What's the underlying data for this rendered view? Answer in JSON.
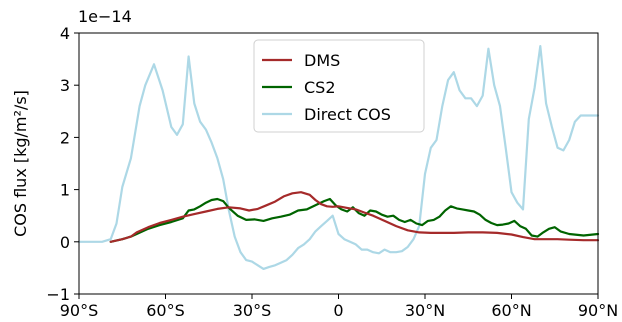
{
  "chart_data": {
    "type": "line",
    "title": "",
    "xlabel": "",
    "ylabel": "COS flux [kg/m²/s]",
    "y_offset_text": "1e−14",
    "xlim": [
      -90,
      90
    ],
    "ylim": [
      -1,
      4
    ],
    "x_ticks": [
      -90,
      -60,
      -30,
      0,
      30,
      60,
      90
    ],
    "x_tick_labels": [
      "90°S",
      "60°S",
      "30°S",
      "0",
      "30°N",
      "60°N",
      "90°N"
    ],
    "y_ticks": [
      -1,
      0,
      1,
      2,
      3,
      4
    ],
    "y_tick_labels": [
      "−1",
      "0",
      "1",
      "2",
      "3",
      "4"
    ],
    "grid": false,
    "legend_position": "top-center",
    "series": [
      {
        "name": "DMS",
        "color": "#a52a2a",
        "x": [
          -79,
          -75,
          -72,
          -70,
          -66,
          -62,
          -58,
          -54,
          -50,
          -46,
          -42,
          -38,
          -34,
          -31,
          -28,
          -25,
          -22,
          -19,
          -16,
          -13,
          -10,
          -8,
          -6,
          -4,
          -2,
          0,
          3,
          6,
          9,
          12,
          16,
          20,
          24,
          28,
          32,
          36,
          40,
          45,
          50,
          55,
          60,
          64,
          68,
          72,
          76,
          80,
          85,
          90
        ],
        "y": [
          0.0,
          0.05,
          0.1,
          0.18,
          0.28,
          0.36,
          0.42,
          0.48,
          0.53,
          0.58,
          0.63,
          0.66,
          0.64,
          0.6,
          0.63,
          0.7,
          0.77,
          0.87,
          0.93,
          0.95,
          0.9,
          0.8,
          0.72,
          0.68,
          0.67,
          0.68,
          0.65,
          0.62,
          0.56,
          0.5,
          0.4,
          0.3,
          0.22,
          0.18,
          0.17,
          0.17,
          0.17,
          0.18,
          0.18,
          0.17,
          0.14,
          0.09,
          0.05,
          0.05,
          0.05,
          0.04,
          0.03,
          0.03
        ]
      },
      {
        "name": "CS2",
        "color": "#006400",
        "x": [
          -79,
          -75,
          -72,
          -70,
          -66,
          -62,
          -58,
          -54,
          -52,
          -50,
          -48,
          -46,
          -44,
          -42,
          -40,
          -38,
          -35,
          -32,
          -29,
          -26,
          -23,
          -20,
          -17,
          -14,
          -11,
          -8,
          -5,
          -3,
          -1,
          1,
          3,
          5,
          7,
          9,
          11,
          13,
          15,
          17,
          19,
          21,
          23,
          25,
          27,
          29,
          31,
          33,
          35,
          37,
          39,
          41,
          43,
          45,
          47,
          49,
          51,
          53,
          55,
          57,
          59,
          61,
          63,
          65,
          67,
          69,
          71,
          73,
          75,
          77,
          80,
          85,
          90
        ],
        "y": [
          0.0,
          0.05,
          0.1,
          0.15,
          0.25,
          0.32,
          0.38,
          0.45,
          0.6,
          0.62,
          0.68,
          0.75,
          0.8,
          0.82,
          0.78,
          0.65,
          0.5,
          0.42,
          0.43,
          0.4,
          0.45,
          0.48,
          0.52,
          0.6,
          0.62,
          0.7,
          0.78,
          0.82,
          0.7,
          0.62,
          0.58,
          0.66,
          0.55,
          0.5,
          0.6,
          0.58,
          0.52,
          0.48,
          0.5,
          0.42,
          0.38,
          0.42,
          0.35,
          0.32,
          0.4,
          0.42,
          0.48,
          0.6,
          0.68,
          0.64,
          0.62,
          0.6,
          0.58,
          0.52,
          0.42,
          0.36,
          0.32,
          0.33,
          0.35,
          0.4,
          0.3,
          0.25,
          0.12,
          0.1,
          0.18,
          0.25,
          0.28,
          0.2,
          0.15,
          0.12,
          0.15
        ]
      },
      {
        "name": "Direct COS",
        "color": "#add8e6",
        "x": [
          -90,
          -82,
          -79,
          -77,
          -75,
          -72,
          -69,
          -67,
          -64,
          -61,
          -58,
          -56,
          -54,
          -52,
          -50,
          -48,
          -46,
          -44,
          -42,
          -40,
          -38,
          -36,
          -34,
          -32,
          -30,
          -28,
          -26,
          -24,
          -22,
          -20,
          -18,
          -16,
          -14,
          -12,
          -10,
          -8,
          -6,
          -4,
          -2,
          0,
          2,
          4,
          6,
          8,
          10,
          12,
          14,
          16,
          18,
          20,
          22,
          24,
          26,
          28,
          30,
          32,
          34,
          36,
          38,
          40,
          42,
          44,
          46,
          48,
          50,
          52,
          54,
          56,
          58,
          60,
          62,
          64,
          66,
          68,
          70,
          72,
          74,
          76,
          78,
          80,
          82,
          84,
          86,
          88,
          90
        ],
        "y": [
          0.0,
          0.0,
          0.05,
          0.35,
          1.05,
          1.6,
          2.6,
          3.0,
          3.4,
          2.9,
          2.2,
          2.05,
          2.25,
          3.55,
          2.65,
          2.3,
          2.15,
          1.9,
          1.6,
          1.2,
          0.6,
          0.1,
          -0.2,
          -0.35,
          -0.38,
          -0.45,
          -0.52,
          -0.48,
          -0.45,
          -0.4,
          -0.35,
          -0.25,
          -0.12,
          -0.05,
          0.05,
          0.2,
          0.3,
          0.4,
          0.5,
          0.15,
          0.05,
          0.0,
          -0.05,
          -0.15,
          -0.15,
          -0.2,
          -0.22,
          -0.15,
          -0.2,
          -0.2,
          -0.18,
          -0.1,
          0.05,
          0.3,
          1.3,
          1.8,
          1.95,
          2.6,
          3.1,
          3.25,
          2.9,
          2.75,
          2.75,
          2.6,
          2.8,
          3.7,
          3.0,
          2.6,
          1.8,
          0.95,
          0.75,
          0.62,
          2.35,
          2.95,
          3.75,
          2.65,
          2.2,
          1.8,
          1.75,
          1.95,
          2.3,
          2.42,
          2.42,
          2.42,
          2.42
        ]
      }
    ]
  }
}
